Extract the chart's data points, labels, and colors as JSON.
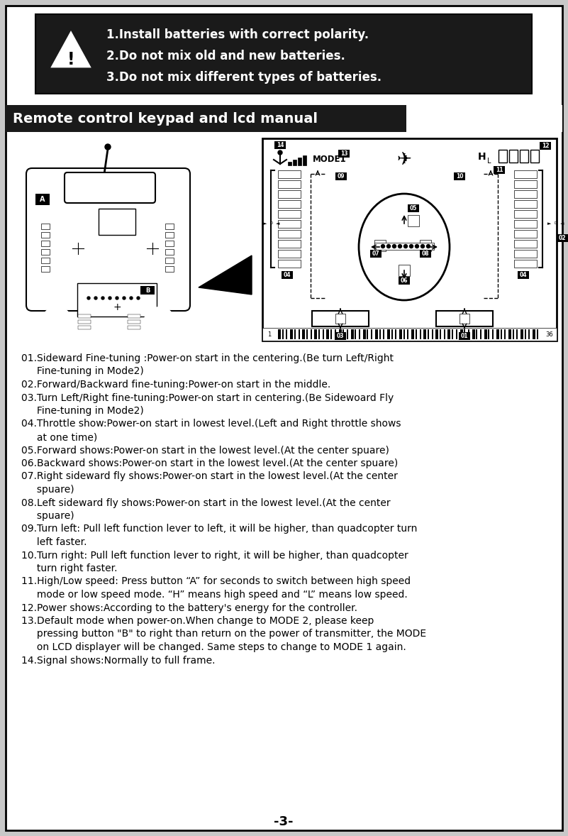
{
  "bg_color": "#ffffff",
  "border_color": "#000000",
  "warning_box_bg": "#1a1a1a",
  "warning_text_color": "#ffffff",
  "warning_lines": [
    "1.Install batteries with correct polarity.",
    "2.Do not mix old and new batteries.",
    "3.Do not mix different types of batteries."
  ],
  "section_title": "Remote control keypad and lcd manual",
  "section_title_bg": "#1a1a1a",
  "section_title_color": "#ffffff",
  "instructions": [
    "01.Sideward Fine-tuning :Power-on start in the centering.(Be turn Left/Right",
    "     Fine-tuning in Mode2)",
    "02.Forward/Backward fine-tuning:Power-on start in the middle.",
    "03.Turn Left/Right fine-tuning:Power-on start in centering.(Be Sidewoard Fly",
    "     Fine-tuning in Mode2)",
    "04.Throttle show:Power-on start in lowest level.(Left and Right throttle shows",
    "     at one time)",
    "05.Forward shows:Power-on start in the lowest level.(At the center spuare)",
    "06.Backward shows:Power-on start in the lowest level.(At the center spuare)",
    "07.Right sideward fly shows:Power-on start in the lowest level.(At the center",
    "     spuare)",
    "08.Left sideward fly shows:Power-on start in the lowest level.(At the center",
    "     spuare)",
    "09.Turn left: Pull left function lever to left, it will be higher, than quadcopter turn",
    "     left faster.",
    "10.Turn right: Pull left function lever to right, it will be higher, than quadcopter",
    "     turn right faster.",
    "11.High/Low speed: Press button “A” for seconds to switch between high speed",
    "     mode or low speed mode. “H” means high speed and “L” means low speed.",
    "12.Power shows:According to the battery's energy for the controller.",
    "13.Default mode when power-on.When change to MODE 2, please keep",
    "     pressing button \"B\" to right than return on the power of transmitter, the MODE",
    "     on LCD displayer will be changed. Same steps to change to MODE 1 again.",
    "14.Signal shows:Normally to full frame."
  ],
  "page_number": "-3-",
  "text_color": "#000000",
  "gray_bg": "#c8c8c8"
}
